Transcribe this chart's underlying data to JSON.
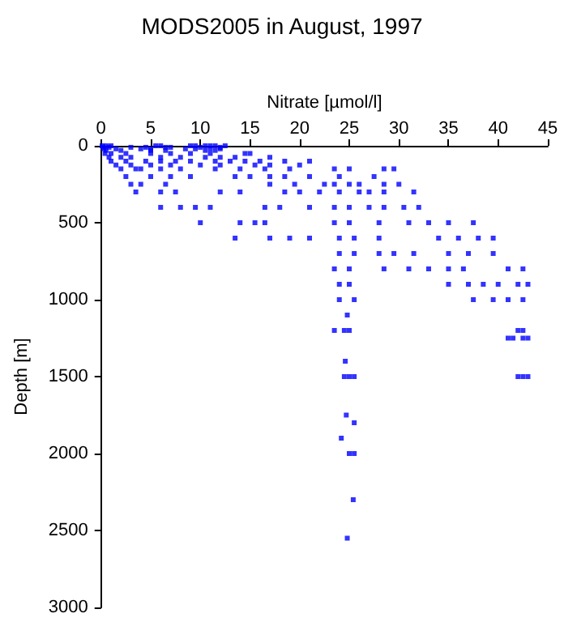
{
  "chart_data": {
    "type": "scatter",
    "title": "MODS2005 in August, 1997",
    "xlabel": "Nitrate [µmol/l]",
    "ylabel": "Depth [m]",
    "marker": "square",
    "xlim": [
      0,
      45
    ],
    "xticks": [
      0,
      5,
      10,
      15,
      20,
      25,
      30,
      35,
      40,
      45
    ],
    "ylim": [
      3000,
      0
    ],
    "yticks": [
      0,
      500,
      1000,
      1500,
      2000,
      2500,
      3000
    ],
    "series": [
      {
        "color": "#0000ff",
        "x": [
          0.1,
          0.5,
          1,
          5.5,
          6,
          9,
          9.5,
          10.5,
          11,
          11.5,
          12.5,
          0.2,
          0.8,
          3,
          4.5,
          6.5,
          7,
          10,
          12,
          0.3,
          1.5,
          4,
          5,
          8.5,
          9.5,
          11,
          12,
          0.5,
          2,
          5,
          6.5,
          10.5,
          11.5,
          0.4,
          1,
          2.5,
          5,
          7,
          9,
          11,
          14.5,
          15,
          0.8,
          2,
          3,
          6,
          8,
          10.5,
          12,
          13.5,
          17,
          1,
          2.5,
          4.5,
          6,
          7.5,
          9,
          11.5,
          13,
          14.5,
          16,
          18.5,
          21,
          1.5,
          3,
          5,
          7,
          10,
          12,
          15.5,
          17,
          20,
          2,
          3.5,
          4,
          6,
          8,
          11.5,
          14,
          16.5,
          19,
          23.5,
          25,
          28.5,
          29.5,
          2.5,
          5,
          7,
          9,
          13.5,
          15,
          17,
          18.5,
          21,
          24,
          27.5,
          3,
          4,
          6.5,
          17,
          19.5,
          22.5,
          23.5,
          25,
          26,
          28.5,
          30,
          3.5,
          6,
          7.5,
          12,
          14,
          18.5,
          20,
          22,
          24,
          26,
          27,
          28.5,
          31.5,
          6,
          8,
          9.5,
          11,
          16.5,
          18,
          21,
          23.5,
          25,
          27,
          28.5,
          30.5,
          32,
          10,
          14,
          15.5,
          16.5,
          23.5,
          25,
          28,
          31,
          33,
          35,
          37.5,
          13.5,
          17,
          19,
          21,
          24,
          25.5,
          28,
          34,
          36,
          38,
          39.5,
          24,
          25.5,
          28,
          29.5,
          31.5,
          35,
          37,
          39.5,
          23.5,
          25,
          28.5,
          31,
          33,
          35,
          36.5,
          41,
          42.5,
          24,
          25,
          35,
          37,
          38.5,
          40,
          42,
          43,
          24,
          25.5,
          37.5,
          39.5,
          41,
          42.5,
          24.8,
          23.5,
          24.5,
          25,
          42,
          42.5,
          41,
          41.5,
          42.5,
          43,
          24.6,
          24.5,
          25,
          25.5,
          42,
          42.5,
          43,
          24.7,
          25.5,
          24.2,
          25,
          25.5,
          25.4,
          24.8
        ],
        "values": [
          0,
          0,
          0,
          0,
          0,
          0,
          0,
          0,
          0,
          0,
          0,
          10,
          10,
          10,
          10,
          10,
          10,
          10,
          10,
          20,
          20,
          20,
          20,
          20,
          20,
          20,
          20,
          30,
          30,
          30,
          30,
          30,
          30,
          50,
          50,
          50,
          50,
          50,
          50,
          50,
          50,
          50,
          75,
          75,
          75,
          75,
          75,
          75,
          75,
          75,
          75,
          100,
          100,
          100,
          100,
          100,
          100,
          100,
          100,
          100,
          100,
          100,
          100,
          125,
          125,
          125,
          125,
          125,
          125,
          125,
          125,
          125,
          150,
          150,
          150,
          150,
          150,
          150,
          150,
          150,
          150,
          150,
          150,
          150,
          150,
          200,
          200,
          200,
          200,
          200,
          200,
          200,
          200,
          200,
          200,
          200,
          250,
          250,
          250,
          250,
          250,
          250,
          250,
          250,
          250,
          250,
          250,
          300,
          300,
          300,
          300,
          300,
          300,
          300,
          300,
          300,
          300,
          300,
          300,
          300,
          400,
          400,
          400,
          400,
          400,
          400,
          400,
          400,
          400,
          400,
          400,
          400,
          400,
          500,
          500,
          500,
          500,
          500,
          500,
          500,
          500,
          500,
          500,
          500,
          600,
          600,
          600,
          600,
          600,
          600,
          600,
          600,
          600,
          600,
          600,
          700,
          700,
          700,
          700,
          700,
          700,
          700,
          700,
          800,
          800,
          800,
          800,
          800,
          800,
          800,
          800,
          800,
          900,
          900,
          900,
          900,
          900,
          900,
          900,
          900,
          1000,
          1000,
          1000,
          1000,
          1000,
          1000,
          1100,
          1200,
          1200,
          1200,
          1200,
          1200,
          1250,
          1250,
          1250,
          1250,
          1400,
          1500,
          1500,
          1500,
          1500,
          1500,
          1500,
          1750,
          1800,
          1900,
          2000,
          2000,
          2300,
          2550
        ]
      }
    ]
  }
}
